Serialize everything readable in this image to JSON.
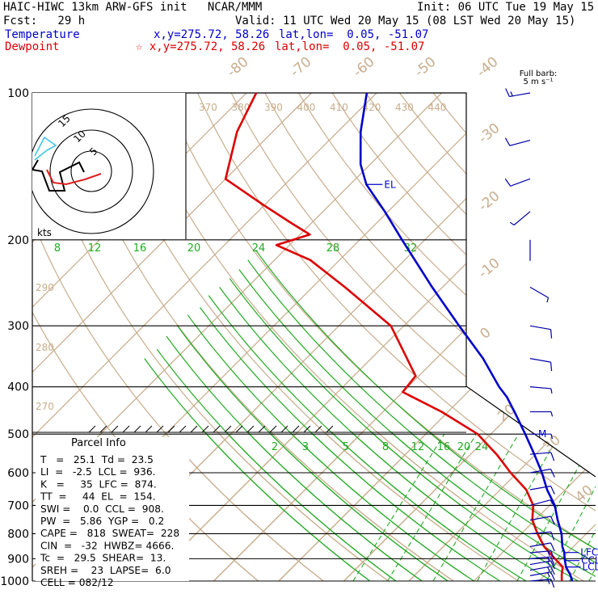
{
  "header": {
    "title": "HAIC-HIWC 13km ARW-GFS init   NCAR/MMM",
    "init": "Init: 06 UTC Tue 19 May 15",
    "fcst": "Fcst:   29 h",
    "valid": "Valid: 11 UTC Wed 20 May 15 (08 LST Wed 20 May 15)",
    "temp_label": "Temperature",
    "temp_xy": "x,y=275.72, 58.26",
    "temp_latlon": "lat,lon=  0.05, -51.07",
    "dew_label": "Dewpoint",
    "dew_xy": "☆ x,y=275.72, 58.26",
    "dew_latlon": "lat,lon=  0.05, -51.07"
  },
  "barb_legend": {
    "line1": "Full barb:",
    "line2": "5 m s⁻¹"
  },
  "parcel": {
    "title": "Parcel Info",
    "rows": [
      "T   =   25.1  Td =  23.5",
      "LI  =   -2.5  LCL =  936.",
      "K   =     35  LFC =  874.",
      "TT  =     44  EL  =  154.",
      "SWI =    0.0  CCL =  908.",
      "PW  =   5.86  YGP =   0.2",
      "CAPE =   818  SWEAT=  228",
      "CIN  =   -32  HWBZ= 4666.",
      "Tc  =   29.5  SHEAR=  13.",
      "SREH =    23  LAPSE=  6.0",
      "CELL = 082/12"
    ]
  },
  "hodograph": {
    "unit": "kts",
    "ring_labels": [
      "5",
      "10",
      "15"
    ]
  },
  "chart_data": {
    "type": "line",
    "subtype": "skew-T log-P",
    "y_axis": {
      "label": "",
      "scale": "log",
      "ticks": [
        100,
        200,
        300,
        400,
        500,
        600,
        700,
        800,
        900,
        1000
      ]
    },
    "isotherm_labels": [
      "-80",
      "-70",
      "-60",
      "-50",
      "-40",
      "-30",
      "-20",
      "-10",
      "0",
      "10",
      "20",
      "30",
      "40"
    ],
    "theta_labels": [
      "370",
      "380",
      "390",
      "400",
      "410",
      "420",
      "430",
      "440",
      "290",
      "280",
      "270"
    ],
    "mixing_ratio_upper": [
      "8",
      "12",
      "16",
      "20",
      "24",
      "28",
      "32"
    ],
    "mixing_ratio_lower": [
      "2",
      "3",
      "5",
      "8",
      "12",
      "16",
      "20",
      "24"
    ],
    "level_labels": [
      "EL",
      "LFC",
      "CCL",
      "LCL",
      "M"
    ],
    "series": [
      {
        "name": "Temperature",
        "color": "#0000cc",
        "p": [
          1000,
          970,
          936,
          900,
          874,
          850,
          800,
          750,
          700,
          650,
          600,
          550,
          500,
          450,
          420,
          400,
          350,
          300,
          250,
          200,
          175,
          154,
          140,
          120,
          100
        ],
        "t": [
          25.1,
          23.8,
          22.0,
          20.5,
          19.5,
          18.3,
          16.2,
          13.5,
          10.8,
          7.2,
          3.8,
          -0.2,
          -4.7,
          -9.8,
          -13.2,
          -16.0,
          -22.8,
          -31.5,
          -41.6,
          -53.5,
          -60.5,
          -67.5,
          -71.5,
          -76.5,
          -81.5
        ]
      },
      {
        "name": "Dewpoint",
        "color": "#dd0000",
        "p": [
          1000,
          970,
          936,
          900,
          850,
          800,
          750,
          700,
          650,
          600,
          550,
          500,
          450,
          410,
          380,
          300,
          250,
          220,
          205,
          195,
          185,
          170,
          150,
          120,
          100
        ],
        "t": [
          23.5,
          22.5,
          21.5,
          19.0,
          15.5,
          12.5,
          9.6,
          7.5,
          4.0,
          -1.0,
          -6.0,
          -12.0,
          -21.0,
          -30.0,
          -30.5,
          -42.0,
          -55.0,
          -64.5,
          -72.0,
          -68.5,
          -73.0,
          -80.0,
          -90.0,
          -95.5,
          -98.5
        ]
      }
    ],
    "wind_barbs": {
      "unit": "m s-1",
      "p": [
        1000,
        975,
        950,
        925,
        900,
        875,
        850,
        800,
        750,
        700,
        650,
        600,
        550,
        500,
        450,
        400,
        350,
        300,
        250,
        200,
        175,
        150,
        125,
        100
      ],
      "dir": [
        85,
        80,
        80,
        80,
        85,
        85,
        80,
        85,
        80,
        75,
        80,
        80,
        85,
        90,
        90,
        95,
        100,
        100,
        120,
        180,
        230,
        250,
        255,
        260
      ],
      "spd": [
        8,
        9,
        9,
        9,
        8,
        8,
        7,
        6,
        6,
        5,
        5,
        5,
        5,
        4,
        4,
        4,
        5,
        5,
        4,
        2,
        4,
        6,
        7,
        8
      ]
    }
  }
}
